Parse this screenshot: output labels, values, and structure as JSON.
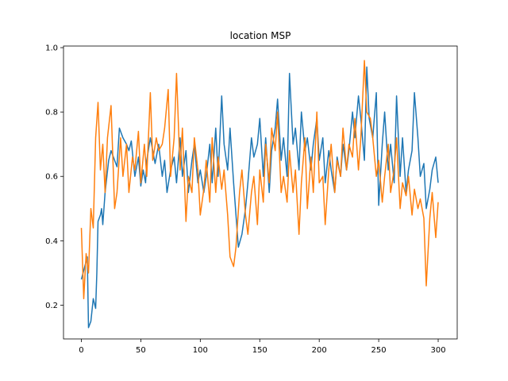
{
  "chart_data": {
    "type": "line",
    "title": "location MSP",
    "xlabel": "",
    "ylabel": "",
    "xlim": [
      -15,
      316
    ],
    "ylim": [
      0.095,
      1.005
    ],
    "xticks": [
      0,
      50,
      100,
      150,
      200,
      250,
      300
    ],
    "yticks": [
      0.2,
      0.4,
      0.6,
      0.8,
      1.0
    ],
    "xtick_labels": [
      "0",
      "50",
      "100",
      "150",
      "200",
      "250",
      "300"
    ],
    "ytick_labels": [
      "0.2",
      "0.4",
      "0.6",
      "0.8",
      "1.0"
    ],
    "grid": false,
    "series": [
      {
        "color": "#1f77b4",
        "x": [
          0,
          5,
          6,
          8,
          10,
          12,
          13,
          14,
          16,
          17,
          18,
          20,
          23,
          25,
          30,
          32,
          35,
          38,
          40,
          42,
          45,
          48,
          50,
          52,
          54,
          55,
          58,
          60,
          62,
          65,
          68,
          70,
          72,
          75,
          78,
          80,
          83,
          85,
          88,
          90,
          93,
          95,
          98,
          100,
          103,
          105,
          108,
          110,
          113,
          115,
          118,
          120,
          123,
          125,
          128,
          130,
          132,
          135,
          138,
          140,
          143,
          145,
          148,
          150,
          153,
          155,
          158,
          160,
          163,
          165,
          168,
          170,
          173,
          175,
          178,
          180,
          183,
          185,
          188,
          190,
          193,
          195,
          198,
          200,
          203,
          205,
          208,
          210,
          213,
          215,
          218,
          220,
          223,
          225,
          228,
          230,
          233,
          235,
          238,
          240,
          242,
          245,
          248,
          250,
          253,
          255,
          258,
          260,
          263,
          265,
          268,
          270,
          273,
          275,
          278,
          280,
          283,
          285,
          288,
          290,
          293,
          295,
          298,
          300
        ],
        "y": [
          0.28,
          0.35,
          0.13,
          0.15,
          0.22,
          0.19,
          0.3,
          0.46,
          0.48,
          0.5,
          0.45,
          0.55,
          0.65,
          0.68,
          0.63,
          0.75,
          0.72,
          0.7,
          0.68,
          0.71,
          0.6,
          0.66,
          0.57,
          0.62,
          0.58,
          0.65,
          0.72,
          0.68,
          0.64,
          0.7,
          0.6,
          0.65,
          0.55,
          0.62,
          0.66,
          0.58,
          0.72,
          0.6,
          0.68,
          0.55,
          0.65,
          0.7,
          0.58,
          0.62,
          0.55,
          0.6,
          0.7,
          0.58,
          0.75,
          0.6,
          0.85,
          0.7,
          0.62,
          0.75,
          0.58,
          0.48,
          0.38,
          0.42,
          0.5,
          0.58,
          0.72,
          0.66,
          0.7,
          0.78,
          0.6,
          0.72,
          0.55,
          0.68,
          0.75,
          0.84,
          0.65,
          0.72,
          0.6,
          0.92,
          0.7,
          0.75,
          0.62,
          0.8,
          0.68,
          0.72,
          0.62,
          0.7,
          0.78,
          0.65,
          0.72,
          0.58,
          0.68,
          0.62,
          0.55,
          0.66,
          0.6,
          0.7,
          0.62,
          0.68,
          0.8,
          0.72,
          0.85,
          0.78,
          0.65,
          0.94,
          0.78,
          0.72,
          0.86,
          0.51,
          0.7,
          0.8,
          0.62,
          0.7,
          0.58,
          0.85,
          0.6,
          0.72,
          0.55,
          0.62,
          0.68,
          0.86,
          0.72,
          0.6,
          0.64,
          0.5,
          0.56,
          0.62,
          0.66,
          0.58
        ]
      },
      {
        "color": "#ff7f0e",
        "x": [
          0,
          2,
          4,
          6,
          8,
          10,
          12,
          14,
          16,
          18,
          20,
          22,
          25,
          28,
          30,
          33,
          35,
          38,
          40,
          43,
          45,
          48,
          50,
          53,
          55,
          58,
          60,
          63,
          65,
          68,
          70,
          73,
          75,
          78,
          80,
          83,
          85,
          88,
          90,
          93,
          95,
          98,
          100,
          103,
          105,
          108,
          110,
          113,
          115,
          118,
          120,
          123,
          125,
          128,
          130,
          133,
          135,
          138,
          140,
          143,
          145,
          148,
          150,
          153,
          155,
          158,
          160,
          163,
          165,
          168,
          170,
          173,
          175,
          178,
          180,
          183,
          185,
          188,
          190,
          193,
          195,
          198,
          200,
          203,
          205,
          208,
          210,
          213,
          215,
          218,
          220,
          223,
          225,
          228,
          230,
          233,
          235,
          238,
          240,
          243,
          245,
          248,
          250,
          253,
          255,
          258,
          260,
          263,
          265,
          268,
          270,
          273,
          275,
          278,
          280,
          283,
          285,
          288,
          290,
          293,
          295,
          298,
          300
        ],
        "y": [
          0.44,
          0.22,
          0.36,
          0.3,
          0.5,
          0.44,
          0.72,
          0.83,
          0.62,
          0.7,
          0.55,
          0.72,
          0.82,
          0.5,
          0.55,
          0.72,
          0.6,
          0.7,
          0.55,
          0.66,
          0.62,
          0.74,
          0.58,
          0.7,
          0.6,
          0.86,
          0.65,
          0.72,
          0.68,
          0.7,
          0.75,
          0.87,
          0.6,
          0.72,
          0.92,
          0.62,
          0.75,
          0.46,
          0.6,
          0.55,
          0.72,
          0.62,
          0.48,
          0.56,
          0.65,
          0.52,
          0.72,
          0.55,
          0.66,
          0.56,
          0.62,
          0.48,
          0.35,
          0.32,
          0.38,
          0.55,
          0.62,
          0.48,
          0.42,
          0.55,
          0.6,
          0.45,
          0.62,
          0.52,
          0.7,
          0.58,
          0.75,
          0.68,
          0.8,
          0.55,
          0.6,
          0.52,
          0.68,
          0.55,
          0.62,
          0.42,
          0.58,
          0.72,
          0.5,
          0.66,
          0.55,
          0.8,
          0.58,
          0.6,
          0.45,
          0.62,
          0.7,
          0.55,
          0.65,
          0.6,
          0.75,
          0.62,
          0.7,
          0.66,
          0.78,
          0.62,
          0.72,
          0.96,
          0.8,
          0.78,
          0.72,
          0.6,
          0.65,
          0.52,
          0.6,
          0.7,
          0.55,
          0.62,
          0.72,
          0.5,
          0.58,
          0.54,
          0.6,
          0.48,
          0.56,
          0.5,
          0.53,
          0.47,
          0.26,
          0.47,
          0.55,
          0.41,
          0.52
        ]
      }
    ]
  }
}
